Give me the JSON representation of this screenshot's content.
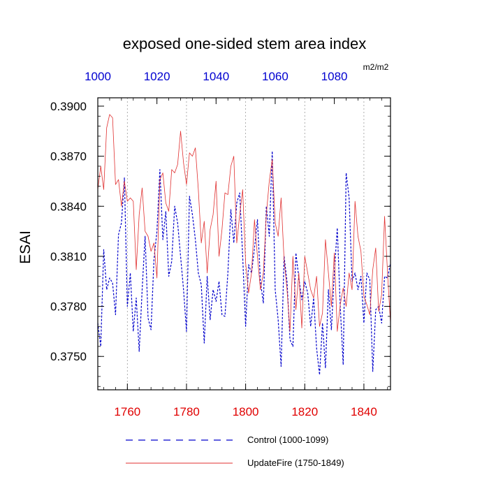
{
  "chart_data": {
    "type": "line",
    "title": "exposed one-sided stem area index",
    "ylabel": "ESAI",
    "units": "m2/m2",
    "ylim": [
      0.373,
      0.3905
    ],
    "yticks": [
      "0.3750",
      "0.3780",
      "0.3810",
      "0.3840",
      "0.3870",
      "0.3900"
    ],
    "x_bottom": {
      "lim": [
        1750,
        1849
      ],
      "ticks": [
        "1760",
        "1780",
        "1800",
        "1820",
        "1840"
      ],
      "color": "#e00000"
    },
    "x_top": {
      "lim": [
        1000,
        1099
      ],
      "ticks": [
        "1000",
        "1020",
        "1040",
        "1060",
        "1080"
      ],
      "color": "#0000d0"
    },
    "grid_x": true,
    "legend_placement": "bottom",
    "series": [
      {
        "name": "Control (1000-1099)",
        "color": "#0000cc",
        "style": "dashed",
        "axis": "top",
        "start_year": 1000,
        "values": [
          0.377,
          0.3756,
          0.3814,
          0.379,
          0.3797,
          0.3794,
          0.3775,
          0.3823,
          0.383,
          0.3857,
          0.378,
          0.38,
          0.3765,
          0.3785,
          0.3753,
          0.379,
          0.3822,
          0.3773,
          0.3766,
          0.3808,
          0.3825,
          0.3862,
          0.382,
          0.3837,
          0.3798,
          0.3807,
          0.384,
          0.383,
          0.381,
          0.379,
          0.3765,
          0.3846,
          0.3835,
          0.382,
          0.38,
          0.3793,
          0.3758,
          0.3798,
          0.3772,
          0.379,
          0.3783,
          0.3795,
          0.3775,
          0.3774,
          0.38,
          0.3838,
          0.3818,
          0.3842,
          0.3848,
          0.381,
          0.3768,
          0.3805,
          0.38,
          0.3815,
          0.3832,
          0.3795,
          0.3782,
          0.384,
          0.3822,
          0.3873,
          0.379,
          0.3772,
          0.3744,
          0.381,
          0.3795,
          0.376,
          0.3756,
          0.3812,
          0.3797,
          0.3784,
          0.3795,
          0.3788,
          0.3768,
          0.3785,
          0.3755,
          0.3739,
          0.377,
          0.3743,
          0.379,
          0.3766,
          0.38,
          0.3827,
          0.378,
          0.3745,
          0.386,
          0.3845,
          0.3795,
          0.38,
          0.379,
          0.3798,
          0.377,
          0.38,
          0.3796,
          0.3741,
          0.3778,
          0.378,
          0.377,
          0.3798,
          0.3797,
          0.3806
        ]
      },
      {
        "name": "UpdateFire (1750-1849)",
        "color": "#e03030",
        "style": "solid",
        "axis": "bottom",
        "start_year": 1750,
        "values": [
          0.385,
          0.3864,
          0.385,
          0.3887,
          0.3895,
          0.3893,
          0.3853,
          0.3856,
          0.384,
          0.3855,
          0.3843,
          0.3845,
          0.3843,
          0.3802,
          0.3835,
          0.3851,
          0.3825,
          0.3822,
          0.3813,
          0.3818,
          0.3797,
          0.3856,
          0.386,
          0.3842,
          0.3837,
          0.3862,
          0.386,
          0.3865,
          0.3885,
          0.3866,
          0.3853,
          0.3872,
          0.387,
          0.3875,
          0.385,
          0.3818,
          0.3831,
          0.38,
          0.3826,
          0.3835,
          0.3855,
          0.381,
          0.3826,
          0.3848,
          0.3847,
          0.3864,
          0.387,
          0.3818,
          0.3835,
          0.385,
          0.3806,
          0.3788,
          0.38,
          0.3832,
          0.381,
          0.379,
          0.38,
          0.3835,
          0.3855,
          0.3868,
          0.383,
          0.3822,
          0.3845,
          0.3808,
          0.379,
          0.3765,
          0.381,
          0.3778,
          0.38,
          0.3767,
          0.381,
          0.38,
          0.379,
          0.3785,
          0.3798,
          0.3768,
          0.3776,
          0.382,
          0.38,
          0.378,
          0.3812,
          0.3765,
          0.3781,
          0.3791,
          0.378,
          0.38,
          0.379,
          0.3843,
          0.3822,
          0.3813,
          0.3786,
          0.3781,
          0.3775,
          0.3802,
          0.3815,
          0.3777,
          0.3787,
          0.3834,
          0.38,
          0.377
        ]
      }
    ]
  }
}
